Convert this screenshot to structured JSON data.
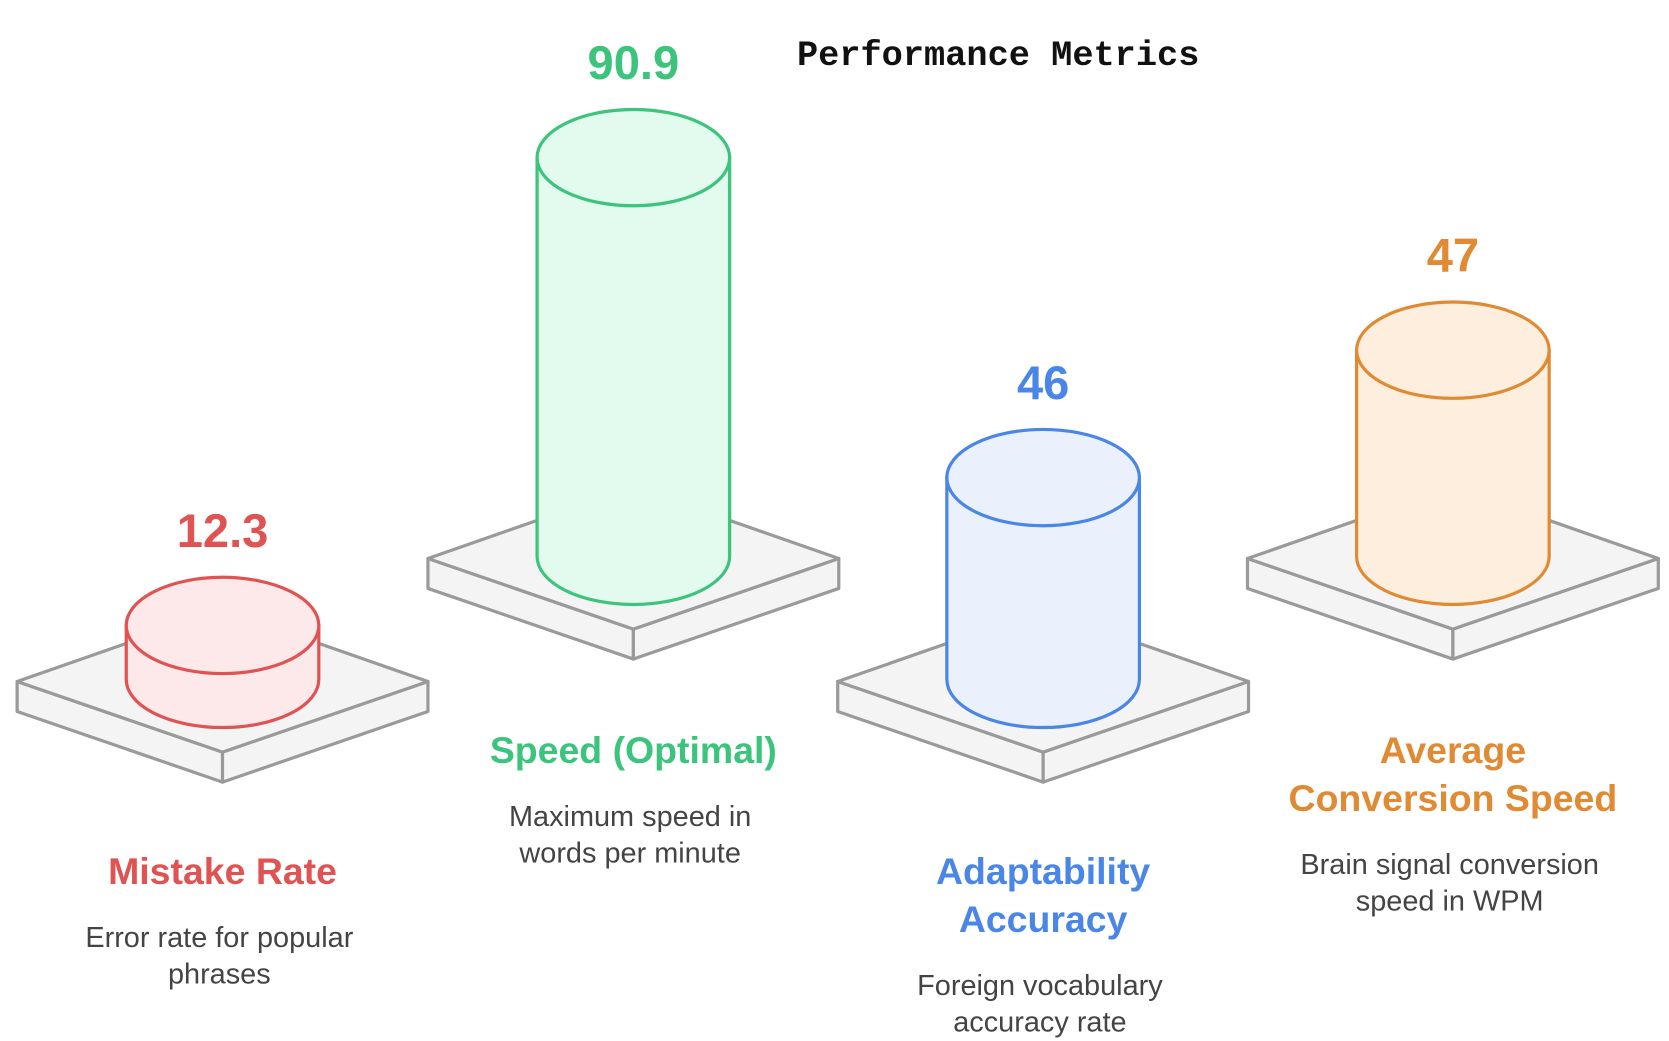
{
  "chart_data": {
    "type": "cylinder",
    "title": "Performance Metrics",
    "items": [
      {
        "value": 12.3,
        "color": "#e05353",
        "fill": "#fde9e9",
        "name": [
          "Mistake Rate"
        ],
        "description": [
          "Error rate for popular",
          "phrases"
        ]
      },
      {
        "value": 90.9,
        "color": "#3cc47c",
        "fill": "#e3fbef",
        "name": [
          "Speed (Optimal)"
        ],
        "description": [
          "Maximum speed in",
          "words per minute"
        ]
      },
      {
        "value": 46,
        "color": "#4a86e8",
        "fill": "#eaf1fd",
        "name": [
          "Adaptability",
          "Accuracy"
        ],
        "description": [
          "Foreign vocabulary",
          "accuracy rate"
        ]
      },
      {
        "value": 47,
        "color": "#e08a33",
        "fill": "#fdeedd",
        "name": [
          "Average",
          "Conversion Speed"
        ],
        "description": [
          "Brain signal conversion",
          "speed in WPM"
        ]
      }
    ]
  }
}
